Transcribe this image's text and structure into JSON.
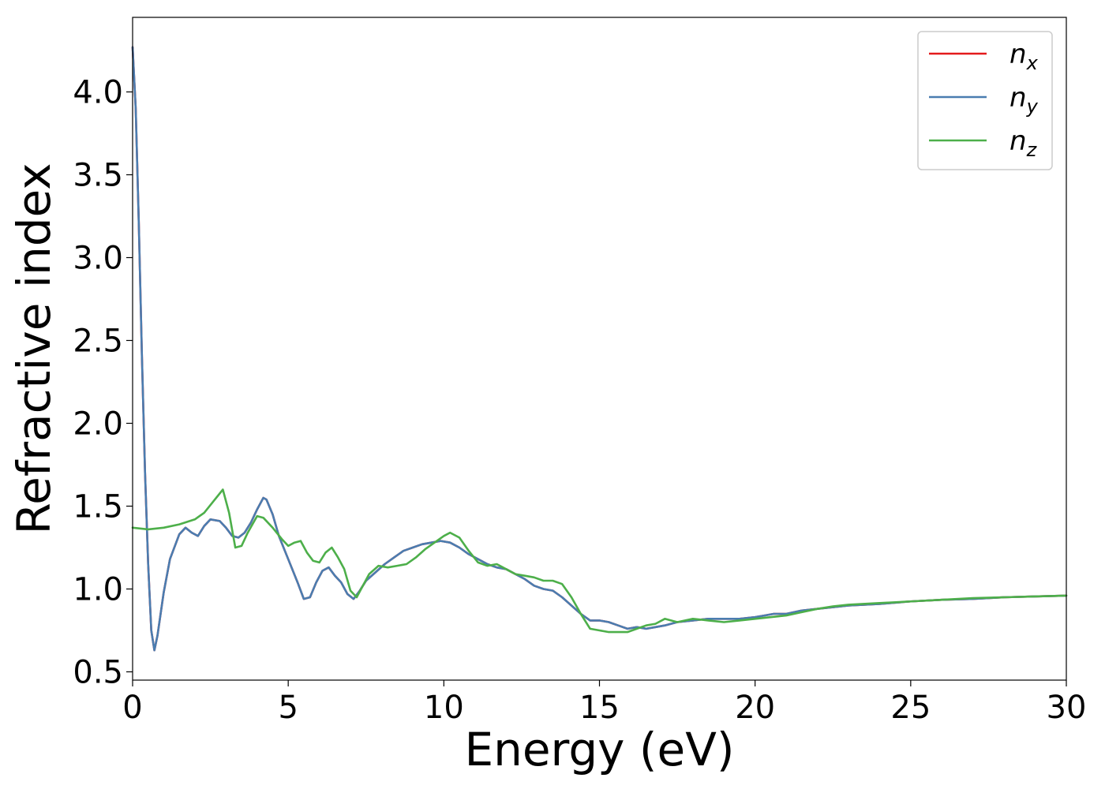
{
  "chart_data": {
    "type": "line",
    "title": "",
    "xlabel": "Energy (eV)",
    "ylabel": "Refractive index",
    "xlim": [
      0,
      30
    ],
    "ylim": [
      0.45,
      4.45
    ],
    "xticks": [
      0,
      5,
      10,
      15,
      20,
      25,
      30
    ],
    "xtick_labels": [
      "0",
      "5",
      "10",
      "15",
      "20",
      "25",
      "30"
    ],
    "yticks": [
      0.5,
      1.0,
      1.5,
      2.0,
      2.5,
      3.0,
      3.5,
      4.0
    ],
    "ytick_labels": [
      "0.5",
      "1.0",
      "1.5",
      "2.0",
      "2.5",
      "3.0",
      "3.5",
      "4.0"
    ],
    "grid": false,
    "legend": "top-right",
    "series": [
      {
        "name": "n",
        "subscript": "x",
        "color": "#e41a1c",
        "x": [
          0,
          0.1,
          0.2,
          0.3,
          0.4,
          0.5,
          0.6,
          0.7,
          0.8,
          1.0,
          1.2,
          1.5,
          1.7,
          1.9,
          2.1,
          2.3,
          2.5,
          2.8,
          3.0,
          3.2,
          3.4,
          3.6,
          3.8,
          4.0,
          4.2,
          4.3,
          4.5,
          4.7,
          5.0,
          5.3,
          5.5,
          5.7,
          5.9,
          6.1,
          6.3,
          6.5,
          6.7,
          6.9,
          7.1,
          7.3,
          7.5,
          7.8,
          8.1,
          8.4,
          8.7,
          9.0,
          9.3,
          9.6,
          9.9,
          10.2,
          10.5,
          10.8,
          11.1,
          11.4,
          11.7,
          12.0,
          12.3,
          12.6,
          12.9,
          13.2,
          13.5,
          13.8,
          14.1,
          14.4,
          14.7,
          15.0,
          15.3,
          15.6,
          15.9,
          16.2,
          16.5,
          16.8,
          17.1,
          17.5,
          18.0,
          18.5,
          19.0,
          19.5,
          20.0,
          20.3,
          20.6,
          21.0,
          21.5,
          22.0,
          22.5,
          23.0,
          24.0,
          25.0,
          26.0,
          27.0,
          28.0,
          29.0,
          30.0
        ],
        "y": [
          4.27,
          3.9,
          3.2,
          2.4,
          1.7,
          1.15,
          0.75,
          0.63,
          0.72,
          0.98,
          1.18,
          1.33,
          1.37,
          1.34,
          1.32,
          1.38,
          1.42,
          1.41,
          1.37,
          1.32,
          1.31,
          1.34,
          1.4,
          1.48,
          1.55,
          1.54,
          1.45,
          1.32,
          1.18,
          1.04,
          0.94,
          0.95,
          1.04,
          1.11,
          1.13,
          1.08,
          1.04,
          0.97,
          0.94,
          0.99,
          1.05,
          1.1,
          1.15,
          1.19,
          1.23,
          1.25,
          1.27,
          1.28,
          1.29,
          1.28,
          1.25,
          1.21,
          1.18,
          1.15,
          1.13,
          1.12,
          1.09,
          1.06,
          1.02,
          1.0,
          0.99,
          0.95,
          0.9,
          0.85,
          0.81,
          0.81,
          0.8,
          0.78,
          0.76,
          0.77,
          0.76,
          0.77,
          0.78,
          0.8,
          0.81,
          0.82,
          0.82,
          0.82,
          0.83,
          0.84,
          0.85,
          0.85,
          0.87,
          0.88,
          0.89,
          0.9,
          0.91,
          0.925,
          0.935,
          0.94,
          0.95,
          0.955,
          0.96
        ]
      },
      {
        "name": "n",
        "subscript": "y",
        "color": "#4a7db0",
        "x": [
          0,
          0.1,
          0.2,
          0.3,
          0.4,
          0.5,
          0.6,
          0.7,
          0.8,
          1.0,
          1.2,
          1.5,
          1.7,
          1.9,
          2.1,
          2.3,
          2.5,
          2.8,
          3.0,
          3.2,
          3.4,
          3.6,
          3.8,
          4.0,
          4.2,
          4.3,
          4.5,
          4.7,
          5.0,
          5.3,
          5.5,
          5.7,
          5.9,
          6.1,
          6.3,
          6.5,
          6.7,
          6.9,
          7.1,
          7.3,
          7.5,
          7.8,
          8.1,
          8.4,
          8.7,
          9.0,
          9.3,
          9.6,
          9.9,
          10.2,
          10.5,
          10.8,
          11.1,
          11.4,
          11.7,
          12.0,
          12.3,
          12.6,
          12.9,
          13.2,
          13.5,
          13.8,
          14.1,
          14.4,
          14.7,
          15.0,
          15.3,
          15.6,
          15.9,
          16.2,
          16.5,
          16.8,
          17.1,
          17.5,
          18.0,
          18.5,
          19.0,
          19.5,
          20.0,
          20.3,
          20.6,
          21.0,
          21.5,
          22.0,
          22.5,
          23.0,
          24.0,
          25.0,
          26.0,
          27.0,
          28.0,
          29.0,
          30.0
        ],
        "y": [
          4.27,
          3.9,
          3.2,
          2.4,
          1.7,
          1.15,
          0.75,
          0.63,
          0.72,
          0.98,
          1.18,
          1.33,
          1.37,
          1.34,
          1.32,
          1.38,
          1.42,
          1.41,
          1.37,
          1.32,
          1.31,
          1.34,
          1.4,
          1.48,
          1.55,
          1.54,
          1.45,
          1.32,
          1.18,
          1.04,
          0.94,
          0.95,
          1.04,
          1.11,
          1.13,
          1.08,
          1.04,
          0.97,
          0.94,
          0.99,
          1.05,
          1.1,
          1.15,
          1.19,
          1.23,
          1.25,
          1.27,
          1.28,
          1.29,
          1.28,
          1.25,
          1.21,
          1.18,
          1.15,
          1.13,
          1.12,
          1.09,
          1.06,
          1.02,
          1.0,
          0.99,
          0.95,
          0.9,
          0.85,
          0.81,
          0.81,
          0.8,
          0.78,
          0.76,
          0.77,
          0.76,
          0.77,
          0.78,
          0.8,
          0.81,
          0.82,
          0.82,
          0.82,
          0.83,
          0.84,
          0.85,
          0.85,
          0.87,
          0.88,
          0.89,
          0.9,
          0.91,
          0.925,
          0.935,
          0.94,
          0.95,
          0.955,
          0.96
        ]
      },
      {
        "name": "n",
        "subscript": "z",
        "color": "#4daf4a",
        "x": [
          0,
          0.5,
          1.0,
          1.5,
          2.0,
          2.3,
          2.6,
          2.9,
          3.1,
          3.3,
          3.5,
          3.7,
          4.0,
          4.2,
          4.5,
          4.8,
          5.0,
          5.2,
          5.4,
          5.6,
          5.8,
          6.0,
          6.2,
          6.4,
          6.6,
          6.8,
          7.0,
          7.2,
          7.4,
          7.6,
          7.9,
          8.2,
          8.5,
          8.8,
          9.1,
          9.4,
          9.7,
          10.0,
          10.2,
          10.5,
          10.8,
          11.1,
          11.4,
          11.7,
          12.0,
          12.3,
          12.6,
          12.9,
          13.2,
          13.5,
          13.8,
          14.1,
          14.4,
          14.7,
          15.0,
          15.3,
          15.6,
          15.9,
          16.2,
          16.5,
          16.8,
          17.1,
          17.5,
          18.0,
          18.5,
          19.0,
          19.5,
          20.0,
          20.5,
          21.0,
          21.5,
          22.0,
          22.5,
          23.0,
          24.0,
          25.0,
          26.0,
          27.0,
          28.0,
          29.0,
          30.0
        ],
        "y": [
          1.37,
          1.36,
          1.37,
          1.39,
          1.42,
          1.46,
          1.53,
          1.6,
          1.46,
          1.25,
          1.26,
          1.34,
          1.44,
          1.43,
          1.37,
          1.3,
          1.26,
          1.28,
          1.29,
          1.22,
          1.17,
          1.16,
          1.22,
          1.25,
          1.19,
          1.12,
          0.99,
          0.95,
          1.02,
          1.09,
          1.14,
          1.13,
          1.14,
          1.15,
          1.19,
          1.24,
          1.28,
          1.32,
          1.34,
          1.31,
          1.23,
          1.16,
          1.14,
          1.15,
          1.12,
          1.09,
          1.08,
          1.07,
          1.05,
          1.05,
          1.03,
          0.95,
          0.85,
          0.76,
          0.75,
          0.74,
          0.74,
          0.74,
          0.76,
          0.78,
          0.79,
          0.82,
          0.8,
          0.82,
          0.81,
          0.8,
          0.81,
          0.82,
          0.83,
          0.84,
          0.86,
          0.88,
          0.895,
          0.905,
          0.915,
          0.925,
          0.935,
          0.945,
          0.95,
          0.955,
          0.96
        ]
      }
    ]
  }
}
